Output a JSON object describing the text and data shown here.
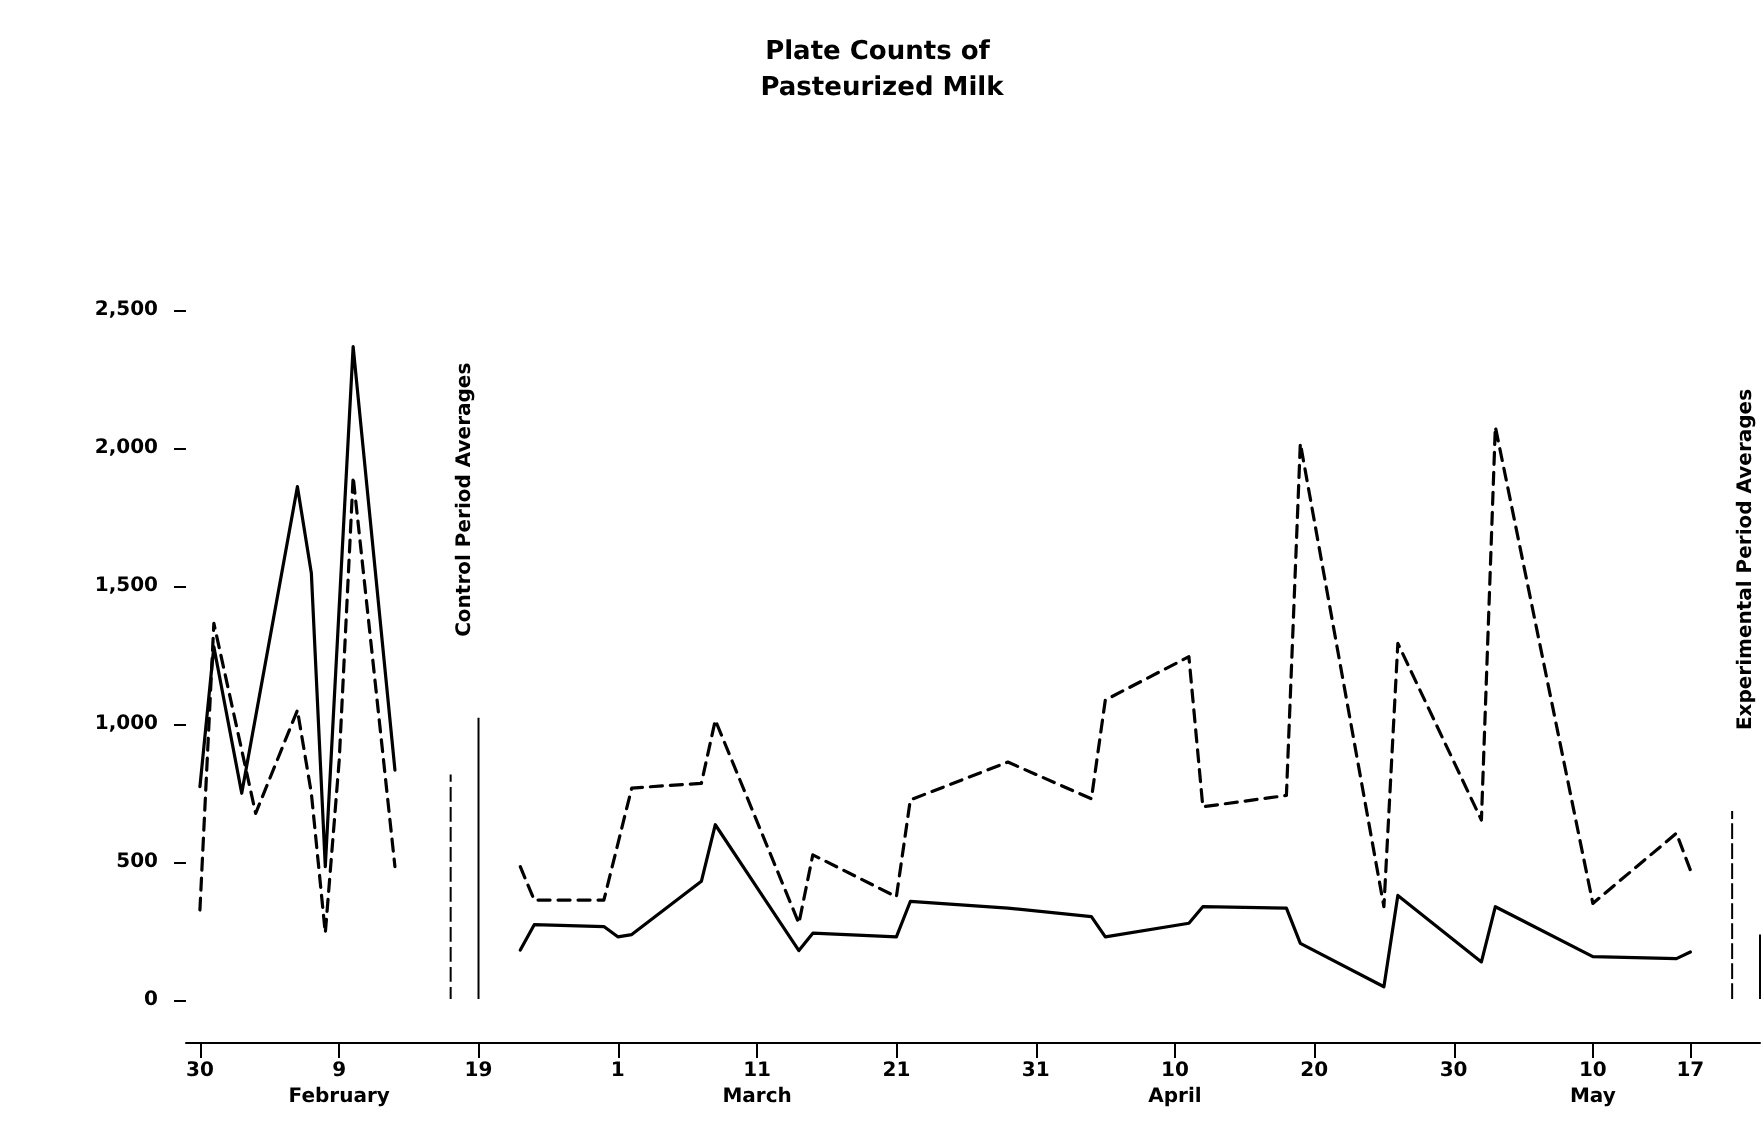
{
  "chart_data": {
    "type": "line",
    "title": "Plate Counts of Pasteurized Milk",
    "xlim": [
      "--01-29",
      "--05-22"
    ],
    "xticks": [
      {
        "value": "--01-30",
        "label": "30"
      },
      {
        "value": "--02-09",
        "label": "9\nFebruary"
      },
      {
        "value": "--02-19",
        "label": "19"
      },
      {
        "value": "--03-01",
        "label": "1"
      },
      {
        "value": "--03-11",
        "label": "11\nMarch"
      },
      {
        "value": "--03-21",
        "label": "21"
      },
      {
        "value": "--03-31",
        "label": "31"
      },
      {
        "value": "--04-10",
        "label": "10\nApril"
      },
      {
        "value": "--04-20",
        "label": "20"
      },
      {
        "value": "--04-30",
        "label": "30"
      },
      {
        "value": "--05-10",
        "label": "10\nMay"
      },
      {
        "value": "--05-17",
        "label": "17"
      }
    ],
    "ylim": [
      0,
      2500
    ],
    "yticks": [
      {
        "value": 0,
        "label": "0"
      },
      {
        "value": 500,
        "label": "500"
      },
      {
        "value": 1000,
        "label": "1,000"
      },
      {
        "value": 1500,
        "label": "1,500"
      },
      {
        "value": 2000,
        "label": "2,000"
      },
      {
        "value": 2500,
        "label": "2,500"
      }
    ],
    "marker": "none",
    "series": [
      {
        "color": "#000000",
        "line_style": "solid",
        "x": [
          "--01-30",
          "--01-31",
          "--02-02",
          "--02-06",
          "--02-07",
          "--02-08",
          "--02-10",
          "--02-13",
          "--02-18",
          "--02-22",
          "--02-23",
          "--02-28",
          "--03-01",
          "--03-02",
          "--03-07",
          "--03-08",
          "--03-14",
          "--03-15",
          "--03-21",
          "--03-22",
          "--03-29",
          "--04-04",
          "--04-05",
          "--04-11",
          "--04-12",
          "--04-18",
          "--04-19",
          "--04-25",
          "--04-26",
          "--05-02",
          "--05-03",
          "--05-10",
          "--05-16",
          "--05-17"
        ],
        "values": [
          773,
          1280,
          749,
          1860,
          1546,
          483,
          2367,
          833,
          null,
          181,
          273,
          266,
          229,
          237,
          430,
          635,
          179,
          242,
          229,
          357,
          333,
          302,
          229,
          278,
          338,
          333,
          205,
          48,
          379,
          138,
          338,
          157,
          150,
          174
        ]
      },
      {
        "color": "#000000",
        "line_style": "dashed",
        "x": [
          "--01-30",
          "--01-31",
          "--02-03",
          "--02-06",
          "--02-07",
          "--02-08",
          "--02-09",
          "--02-10",
          "--02-13",
          "--02-18",
          "--02-22",
          "--02-23",
          "--02-28",
          "--03-02",
          "--03-07",
          "--03-08",
          "--03-14",
          "--03-15",
          "--03-21",
          "--03-22",
          "--03-29",
          "--04-04",
          "--04-05",
          "--04-11",
          "--04-12",
          "--04-18",
          "--04-19",
          "--04-25",
          "--04-26",
          "--05-02",
          "--05-03",
          "--05-10",
          "--05-16",
          "--05-17"
        ],
        "values": [
          326,
          1365,
          676,
          1050,
          749,
          242,
          869,
          1896,
          483,
          null,
          483,
          362,
          362,
          768,
          785,
          1014,
          278,
          526,
          374,
          725,
          862,
          729,
          1087,
          1244,
          700,
          741,
          2017,
          338,
          1292,
          652,
          2077,
          350,
          604,
          471
        ]
      },
      {
        "type": "bar",
        "color": "#000000",
        "line_style": "dashed",
        "x": [
          "--02-17",
          "--05-20"
        ],
        "values": [
          821,
          688
        ]
      },
      {
        "type": "bar",
        "color": "#000000",
        "line_style": "solid",
        "x": [
          "--02-19",
          "--05-22"
        ],
        "values": [
          1026,
          241
        ]
      }
    ],
    "annotations": [
      "Control Period Averages",
      "Experimental Period Averages"
    ]
  }
}
